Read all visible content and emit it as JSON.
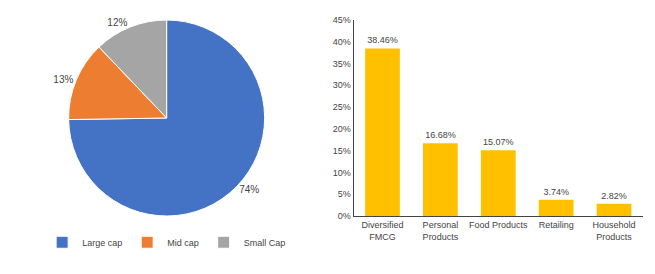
{
  "chart_data": [
    {
      "type": "pie",
      "categories": [
        "Large cap",
        "Mid cap",
        "Small Cap"
      ],
      "values": [
        74,
        13,
        12
      ],
      "value_labels": [
        "74%",
        "13%",
        "12%"
      ],
      "colors": [
        "#4472C4",
        "#ED7D31",
        "#A5A5A5"
      ],
      "data_labels": true,
      "legend": "bottom"
    },
    {
      "type": "bar",
      "categories": [
        "Diversified\nFMCG",
        "Personal\nProducts",
        "Food Products",
        "Retailing",
        "Household\nProducts"
      ],
      "values": [
        38.46,
        16.68,
        15.07,
        3.74,
        2.82
      ],
      "value_labels": [
        "38.46%",
        "16.68%",
        "15.07%",
        "3.74%",
        "2.82%"
      ],
      "color": "#FFC000",
      "data_labels": true,
      "ylim": [
        0,
        45
      ],
      "yticks": [
        {
          "value": 0,
          "label": "0%"
        },
        {
          "value": 5,
          "label": "5%"
        },
        {
          "value": 10,
          "label": "10%"
        },
        {
          "value": 15,
          "label": "15%"
        },
        {
          "value": 20,
          "label": "20%"
        },
        {
          "value": 25,
          "label": "25%"
        },
        {
          "value": 30,
          "label": "30%"
        },
        {
          "value": 35,
          "label": "35%"
        },
        {
          "value": 40,
          "label": "40%"
        },
        {
          "value": 45,
          "label": "45%"
        }
      ],
      "grid": false
    }
  ]
}
